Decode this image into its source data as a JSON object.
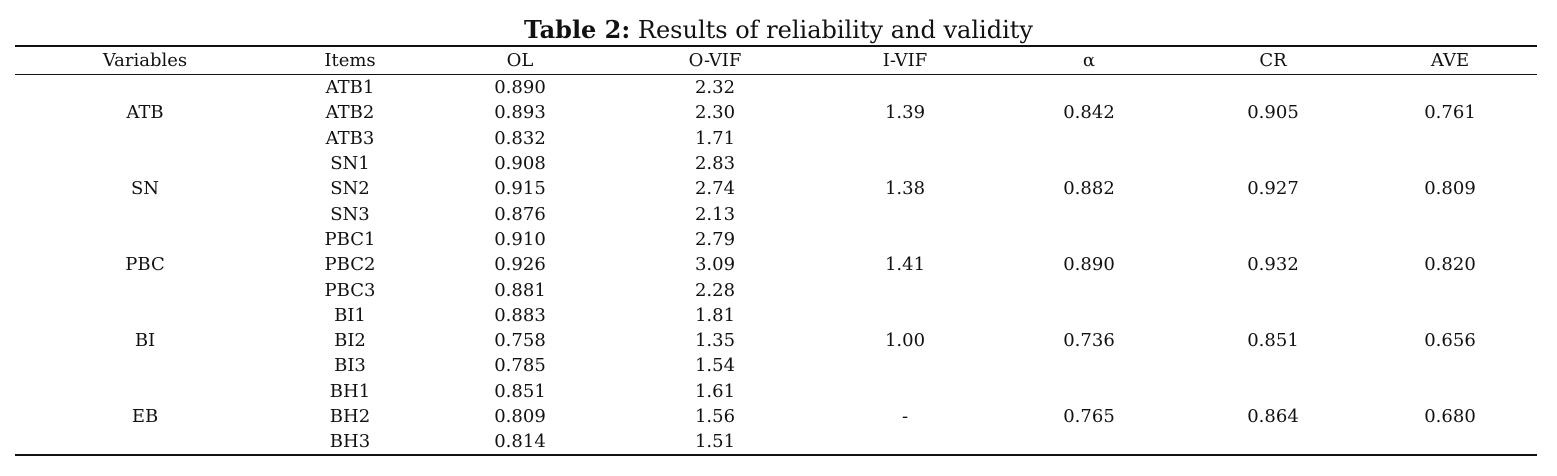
{
  "caption": {
    "label": "Table 2:",
    "text": "Results of reliability and validity"
  },
  "headers": [
    "Variables",
    "Items",
    "OL",
    "O-VIF",
    "I-VIF",
    "α",
    "CR",
    "AVE"
  ],
  "groups": [
    {
      "variable": "ATB",
      "i_vif": "1.39",
      "alpha": "0.842",
      "cr": "0.905",
      "ave": "0.761",
      "items": [
        {
          "item": "ATB1",
          "ol": "0.890",
          "ovif": "2.32"
        },
        {
          "item": "ATB2",
          "ol": "0.893",
          "ovif": "2.30"
        },
        {
          "item": "ATB3",
          "ol": "0.832",
          "ovif": "1.71"
        }
      ]
    },
    {
      "variable": "SN",
      "i_vif": "1.38",
      "alpha": "0.882",
      "cr": "0.927",
      "ave": "0.809",
      "items": [
        {
          "item": "SN1",
          "ol": "0.908",
          "ovif": "2.83"
        },
        {
          "item": "SN2",
          "ol": "0.915",
          "ovif": "2.74"
        },
        {
          "item": "SN3",
          "ol": "0.876",
          "ovif": "2.13"
        }
      ]
    },
    {
      "variable": "PBC",
      "i_vif": "1.41",
      "alpha": "0.890",
      "cr": "0.932",
      "ave": "0.820",
      "items": [
        {
          "item": "PBC1",
          "ol": "0.910",
          "ovif": "2.79"
        },
        {
          "item": "PBC2",
          "ol": "0.926",
          "ovif": "3.09"
        },
        {
          "item": "PBC3",
          "ol": "0.881",
          "ovif": "2.28"
        }
      ]
    },
    {
      "variable": "BI",
      "i_vif": "1.00",
      "alpha": "0.736",
      "cr": "0.851",
      "ave": "0.656",
      "items": [
        {
          "item": "BI1",
          "ol": "0.883",
          "ovif": "1.81"
        },
        {
          "item": "BI2",
          "ol": "0.758",
          "ovif": "1.35"
        },
        {
          "item": "BI3",
          "ol": "0.785",
          "ovif": "1.54"
        }
      ]
    },
    {
      "variable": "EB",
      "i_vif": "-",
      "alpha": "0.765",
      "cr": "0.864",
      "ave": "0.680",
      "items": [
        {
          "item": "BH1",
          "ol": "0.851",
          "ovif": "1.61"
        },
        {
          "item": "BH2",
          "ol": "0.809",
          "ovif": "1.56"
        },
        {
          "item": "BH3",
          "ol": "0.814",
          "ovif": "1.51"
        }
      ]
    }
  ]
}
